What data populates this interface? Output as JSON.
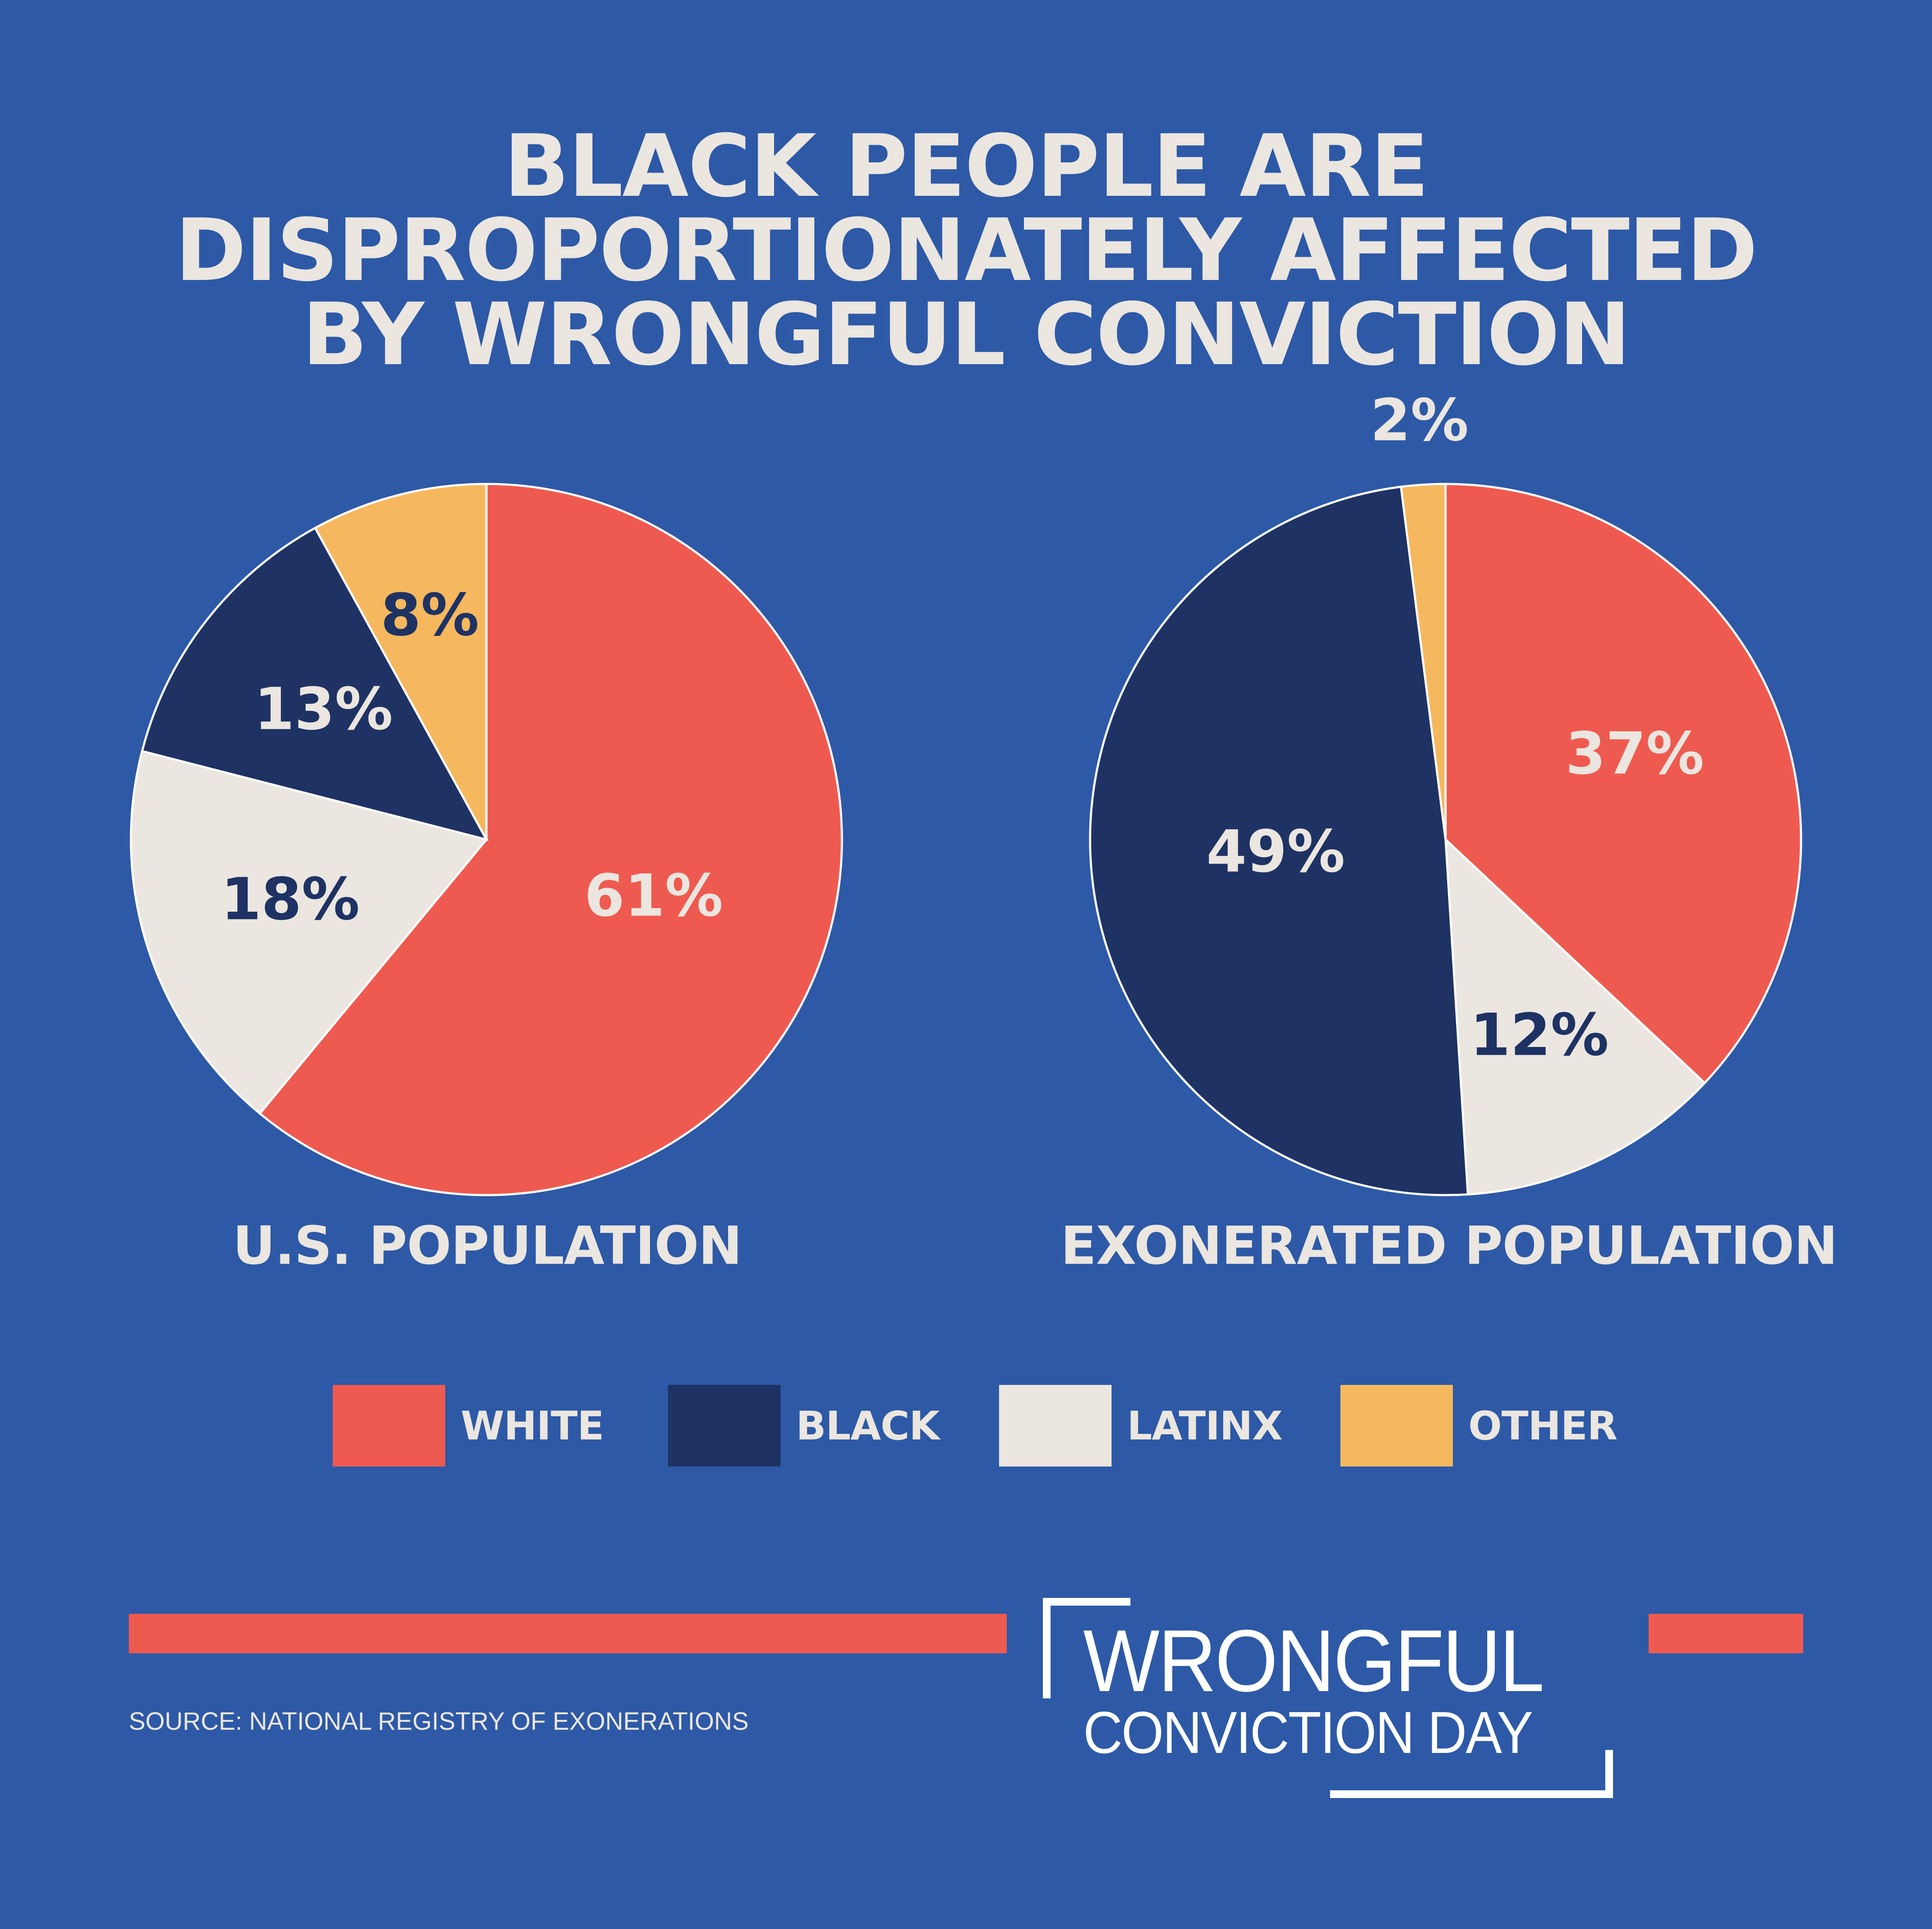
{
  "title_lines": [
    "BLACK PEOPLE ARE",
    "DISPROPORTIONATELY AFFECTED",
    "BY WRONGFUL CONVICTION"
  ],
  "colors": {
    "background": "#2d59a7",
    "white": "#ef5a50",
    "black": "#1e3264",
    "latinx": "#ebe6df",
    "other": "#f6b85e",
    "text": "#ebe6df"
  },
  "chart_data": [
    {
      "type": "pie",
      "title": "U.S. POPULATION",
      "slices": [
        {
          "category": "WHITE",
          "value": 61,
          "label": "61%"
        },
        {
          "category": "LATINX",
          "value": 18,
          "label": "18%"
        },
        {
          "category": "BLACK",
          "value": 13,
          "label": "13%"
        },
        {
          "category": "OTHER",
          "value": 8,
          "label": "8%"
        }
      ]
    },
    {
      "type": "pie",
      "title": "EXONERATED POPULATION",
      "slices": [
        {
          "category": "WHITE",
          "value": 37,
          "label": "37%"
        },
        {
          "category": "LATINX",
          "value": 12,
          "label": "12%"
        },
        {
          "category": "BLACK",
          "value": 49,
          "label": "49%"
        },
        {
          "category": "OTHER",
          "value": 2,
          "label": "2%"
        }
      ]
    }
  ],
  "legend": [
    {
      "label": "WHITE",
      "color": "#ef5a50"
    },
    {
      "label": "BLACK",
      "color": "#1e3264"
    },
    {
      "label": "LATINX",
      "color": "#ebe6df"
    },
    {
      "label": "OTHER",
      "color": "#f6b85e"
    }
  ],
  "source": "SOURCE: NATIONAL REGISTRY OF EXONERATIONS",
  "logo": {
    "line1": "WRONGFUL",
    "line2": "CONVICTION DAY"
  }
}
